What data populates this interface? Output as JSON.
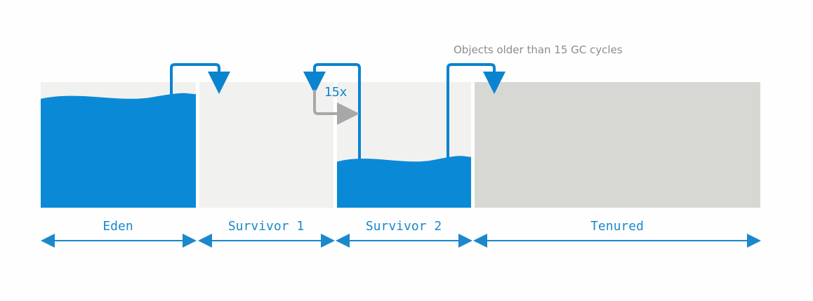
{
  "diagram": {
    "annotation": "Objects older than 15 GC cycles",
    "cycle_count_label": "15x",
    "regions": [
      {
        "id": "eden",
        "label": "Eden",
        "fill_level": 0.88
      },
      {
        "id": "survivor1",
        "label": "Survivor 1",
        "fill_level": 0.0
      },
      {
        "id": "survivor2",
        "label": "Survivor 2",
        "fill_level": 0.38
      },
      {
        "id": "tenured",
        "label": "Tenured",
        "fill_level": 0.0
      }
    ]
  },
  "colors": {
    "water_blue": "#0a8ad6",
    "arrow_blue": "#0a84cf",
    "label_blue": "#1b88cc",
    "arrow_gray": "#a8a8a8",
    "young_bg": "#f1f1ef",
    "tenured_bg": "#d7d7d4",
    "annotation_gray": "#8c8c8c"
  }
}
